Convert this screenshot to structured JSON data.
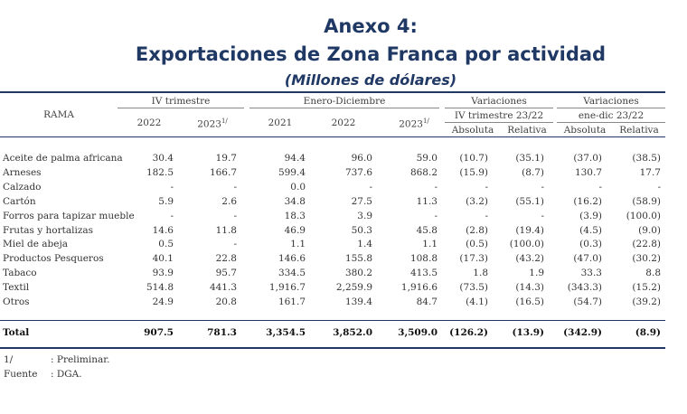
{
  "title_line1": "Anexo 4:",
  "title_line2": "Exportaciones de Zona Franca por actividad",
  "title_line3": "(Millones de dólares)",
  "header": {
    "rama": "RAMA",
    "group_iv": "IV trimestre",
    "group_ed": "Enero-Diciembre",
    "group_var1": "Variaciones",
    "group_var1_sub": "IV trimestre 23/22",
    "group_var2": "Variaciones",
    "group_var2_sub": "ene-dic 23/22",
    "cols": [
      "2022",
      "2023",
      "2021",
      "2022",
      "2023",
      "Absoluta",
      "Relativa",
      "Absoluta",
      "Relativa"
    ],
    "footnote_mark": "1/"
  },
  "rows": [
    {
      "name": "Aceite de palma africana",
      "v": [
        "30.4",
        "19.7",
        "94.4",
        "96.0",
        "59.0",
        "(10.7)",
        "(35.1)",
        "(37.0)",
        "(38.5)"
      ]
    },
    {
      "name": "Arneses",
      "v": [
        "182.5",
        "166.7",
        "599.4",
        "737.6",
        "868.2",
        "(15.9)",
        "(8.7)",
        "130.7",
        "17.7"
      ]
    },
    {
      "name": "Calzado",
      "v": [
        "-",
        "-",
        "0.0",
        "-",
        "-",
        "-",
        "-",
        "-",
        "-"
      ]
    },
    {
      "name": "Cartón",
      "v": [
        "5.9",
        "2.6",
        "34.8",
        "27.5",
        "11.3",
        "(3.2)",
        "(55.1)",
        "(16.2)",
        "(58.9)"
      ]
    },
    {
      "name": "Forros para tapizar mueble",
      "v": [
        "-",
        "-",
        "18.3",
        "3.9",
        "-",
        "-",
        "-",
        "(3.9)",
        "(100.0)"
      ]
    },
    {
      "name": "Frutas y hortalizas",
      "v": [
        "14.6",
        "11.8",
        "46.9",
        "50.3",
        "45.8",
        "(2.8)",
        "(19.4)",
        "(4.5)",
        "(9.0)"
      ]
    },
    {
      "name": "Miel de abeja",
      "v": [
        "0.5",
        "-",
        "1.1",
        "1.4",
        "1.1",
        "(0.5)",
        "(100.0)",
        "(0.3)",
        "(22.8)"
      ]
    },
    {
      "name": "Productos Pesqueros",
      "v": [
        "40.1",
        "22.8",
        "146.6",
        "155.8",
        "108.8",
        "(17.3)",
        "(43.2)",
        "(47.0)",
        "(30.2)"
      ]
    },
    {
      "name": "Tabaco",
      "v": [
        "93.9",
        "95.7",
        "334.5",
        "380.2",
        "413.5",
        "1.8",
        "1.9",
        "33.3",
        "8.8"
      ]
    },
    {
      "name": "Textil",
      "v": [
        "514.8",
        "441.3",
        "1,916.7",
        "2,259.9",
        "1,916.6",
        "(73.5)",
        "(14.3)",
        "(343.3)",
        "(15.2)"
      ]
    },
    {
      "name": "Otros",
      "v": [
        "24.9",
        "20.8",
        "161.7",
        "139.4",
        "84.7",
        "(4.1)",
        "(16.5)",
        "(54.7)",
        "(39.2)"
      ]
    }
  ],
  "total": {
    "name": "Total",
    "v": [
      "907.5",
      "781.3",
      "3,354.5",
      "3,852.0",
      "3,509.0",
      "(126.2)",
      "(13.9)",
      "(342.9)",
      "(8.9)"
    ]
  },
  "notes": [
    {
      "key": "1/",
      "text": ": Preliminar."
    },
    {
      "key": "Fuente",
      "text": ": DGA."
    }
  ],
  "colors": {
    "title": "#1f3864",
    "rule": "#1f3864",
    "thin_rule": "#888888"
  }
}
